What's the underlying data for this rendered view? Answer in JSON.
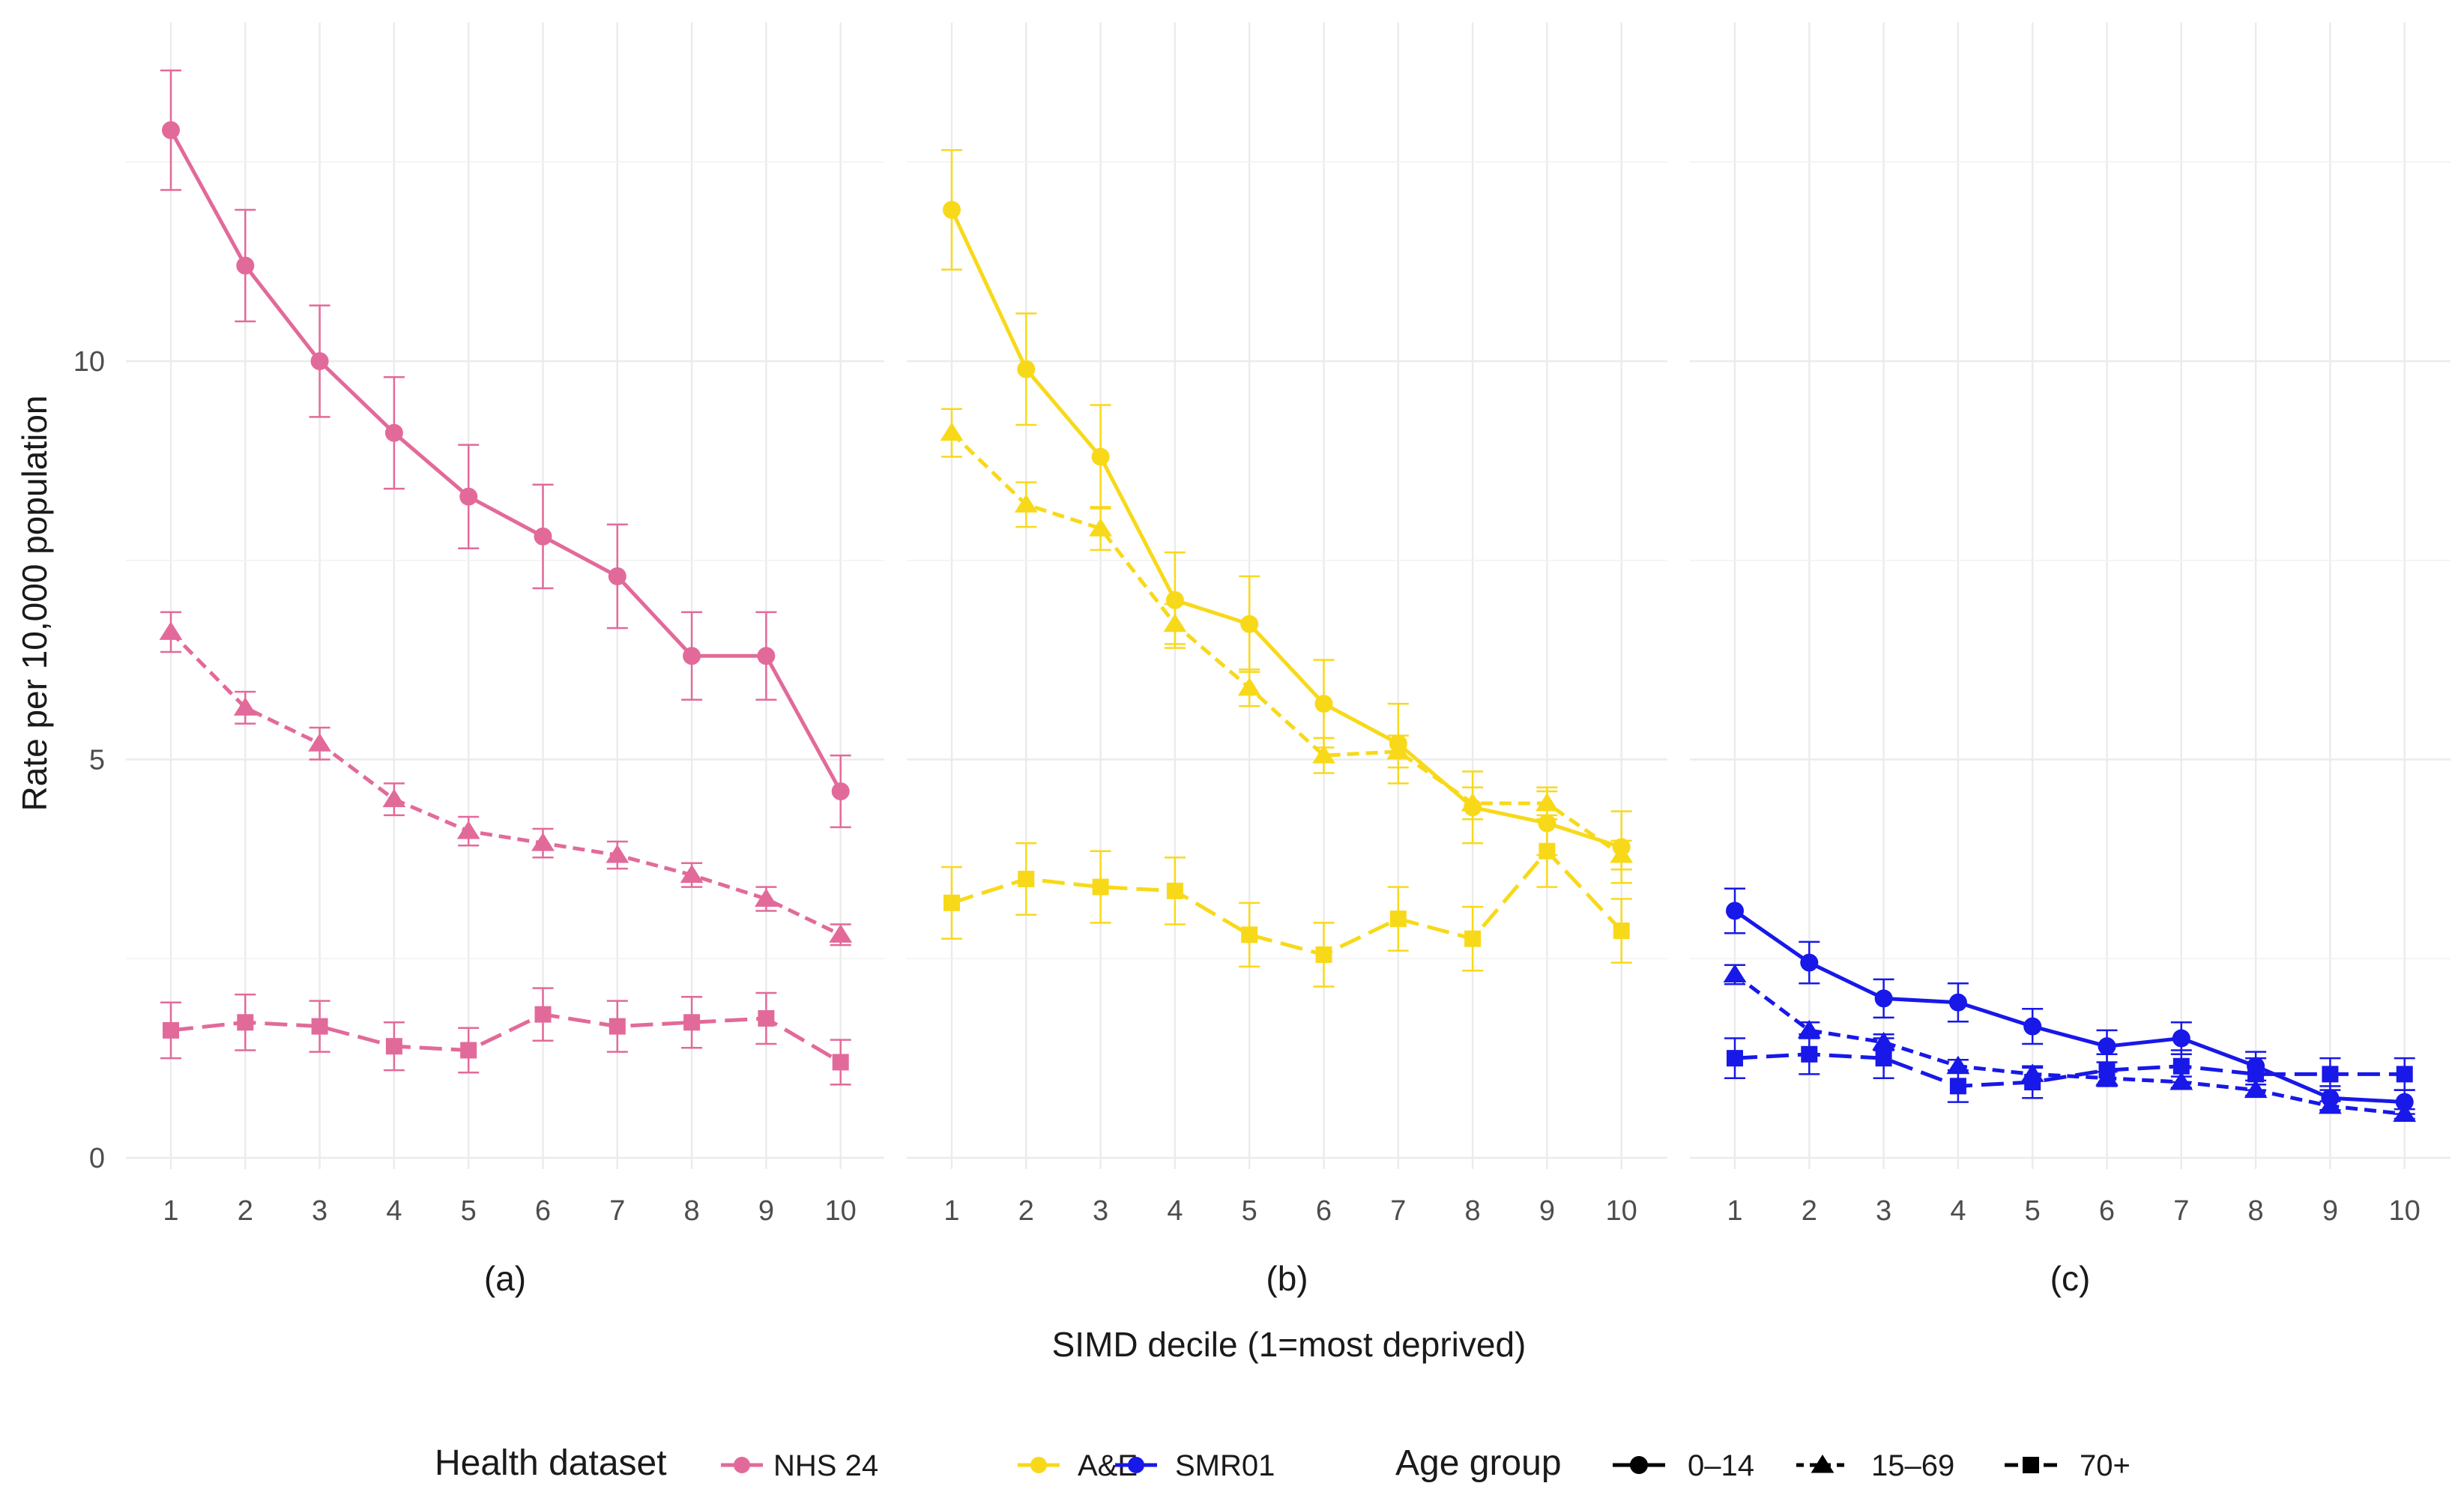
{
  "chart_data": {
    "type": "line",
    "xlabel": "SIMD decile (1=most deprived)",
    "ylabel": "Rate per 10,000 population",
    "x": [
      1,
      2,
      3,
      4,
      5,
      6,
      7,
      8,
      9,
      10
    ],
    "ylim": [
      0,
      14
    ],
    "y_ticks": [
      0,
      5,
      10
    ],
    "grid": true,
    "legend_position": "bottom",
    "legend": {
      "dataset_title": "Health dataset",
      "age_title": "Age group",
      "datasets": [
        "NHS 24",
        "A&E",
        "SMR01"
      ],
      "age_groups": [
        "0–14",
        "15–69",
        "70+"
      ]
    },
    "colors": {
      "NHS 24": "#e26a9a",
      "A&E": "#f8d91a",
      "SMR01": "#1818e8"
    },
    "panels": [
      {
        "label": "(a)",
        "dataset": "NHS 24",
        "series": [
          {
            "age": "0–14",
            "values": [
              12.9,
              11.2,
              10.0,
              9.1,
              8.3,
              7.8,
              7.3,
              6.3,
              6.3,
              4.6
            ],
            "err": [
              0.75,
              0.7,
              0.7,
              0.7,
              0.65,
              0.65,
              0.65,
              0.55,
              0.55,
              0.45
            ]
          },
          {
            "age": "15–69",
            "values": [
              6.6,
              5.65,
              5.2,
              4.5,
              4.1,
              3.95,
              3.8,
              3.55,
              3.25,
              2.8
            ],
            "err": [
              0.25,
              0.2,
              0.2,
              0.2,
              0.18,
              0.18,
              0.17,
              0.15,
              0.15,
              0.13
            ]
          },
          {
            "age": "70+",
            "values": [
              1.6,
              1.7,
              1.65,
              1.4,
              1.35,
              1.8,
              1.65,
              1.7,
              1.75,
              1.2
            ],
            "err": [
              0.35,
              0.35,
              0.32,
              0.3,
              0.28,
              0.33,
              0.32,
              0.32,
              0.32,
              0.28
            ]
          }
        ]
      },
      {
        "label": "(b)",
        "dataset": "A&E",
        "series": [
          {
            "age": "0–14",
            "values": [
              11.9,
              9.9,
              8.8,
              7.0,
              6.7,
              5.7,
              5.2,
              4.4,
              4.2,
              3.9
            ],
            "err": [
              0.75,
              0.7,
              0.65,
              0.6,
              0.6,
              0.55,
              0.5,
              0.45,
              0.4,
              0.45
            ]
          },
          {
            "age": "15–69",
            "values": [
              9.1,
              8.2,
              7.9,
              6.7,
              5.9,
              5.05,
              5.1,
              4.45,
              4.45,
              3.8
            ],
            "err": [
              0.3,
              0.28,
              0.27,
              0.25,
              0.23,
              0.22,
              0.2,
              0.2,
              0.2,
              0.18
            ]
          },
          {
            "age": "70+",
            "values": [
              3.2,
              3.5,
              3.4,
              3.35,
              2.8,
              2.55,
              3.0,
              2.75,
              3.85,
              2.85
            ],
            "err": [
              0.45,
              0.45,
              0.45,
              0.42,
              0.4,
              0.4,
              0.4,
              0.4,
              0.45,
              0.4
            ]
          }
        ]
      },
      {
        "label": "(c)",
        "dataset": "SMR01",
        "series": [
          {
            "age": "0–14",
            "values": [
              3.1,
              2.45,
              2.0,
              1.95,
              1.65,
              1.4,
              1.5,
              1.15,
              0.75,
              0.7
            ],
            "err": [
              0.28,
              0.26,
              0.24,
              0.24,
              0.22,
              0.2,
              0.2,
              0.18,
              0.15,
              0.15
            ]
          },
          {
            "age": "15–69",
            "values": [
              2.3,
              1.6,
              1.45,
              1.15,
              1.05,
              1.0,
              0.95,
              0.85,
              0.65,
              0.55
            ],
            "err": [
              0.12,
              0.1,
              0.1,
              0.08,
              0.08,
              0.08,
              0.07,
              0.07,
              0.06,
              0.06
            ]
          },
          {
            "age": "70+",
            "values": [
              1.25,
              1.3,
              1.25,
              0.9,
              0.95,
              1.1,
              1.15,
              1.05,
              1.05,
              1.05
            ],
            "err": [
              0.25,
              0.25,
              0.25,
              0.2,
              0.2,
              0.2,
              0.2,
              0.2,
              0.2,
              0.2
            ]
          }
        ]
      }
    ]
  }
}
